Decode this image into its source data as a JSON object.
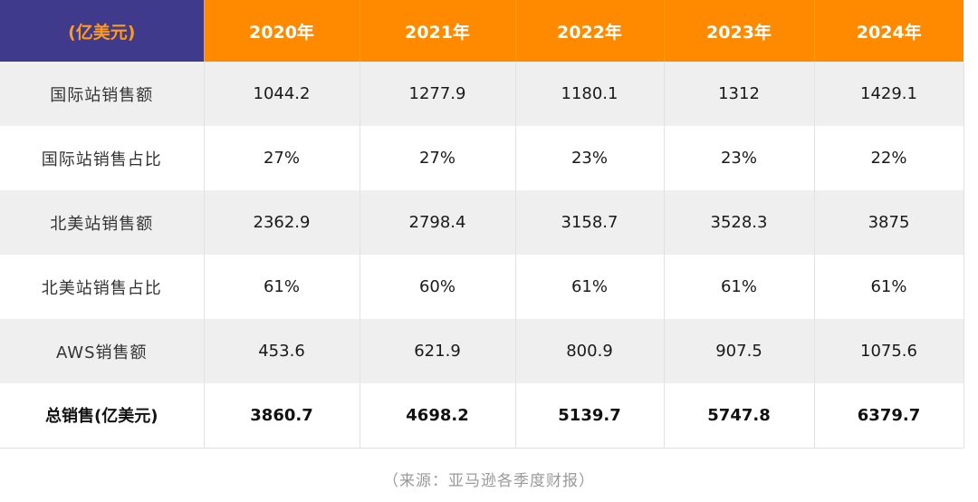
{
  "chart_data": {
    "type": "table",
    "unit_header": "(亿美元)",
    "columns": [
      "2020年",
      "2021年",
      "2022年",
      "2023年",
      "2024年"
    ],
    "rows": [
      {
        "label": "国际站销售额",
        "values": [
          "1044.2",
          "1277.9",
          "1180.1",
          "1312",
          "1429.1"
        ]
      },
      {
        "label": "国际站销售占比",
        "values": [
          "27%",
          "27%",
          "23%",
          "23%",
          "22%"
        ]
      },
      {
        "label": "北美站销售额",
        "values": [
          "2362.9",
          "2798.4",
          "3158.7",
          "3528.3",
          "3875"
        ]
      },
      {
        "label": "北美站销售占比",
        "values": [
          "61%",
          "60%",
          "61%",
          "61%",
          "61%"
        ]
      },
      {
        "label": "AWS销售额",
        "values": [
          "453.6",
          "621.9",
          "800.9",
          "907.5",
          "1075.6"
        ]
      },
      {
        "label": "总销售(亿美元)",
        "values": [
          "3860.7",
          "4698.2",
          "5139.7",
          "5747.8",
          "6379.7"
        ]
      }
    ],
    "source": "（来源：亚马逊各季度财报）",
    "colors": {
      "header_orange": "#ff8a00",
      "header_unit_bg": "#3f3a8c",
      "header_unit_text": "#ff9a1a",
      "row_shade": "#efefef",
      "source_text": "#9a9a9a"
    }
  }
}
